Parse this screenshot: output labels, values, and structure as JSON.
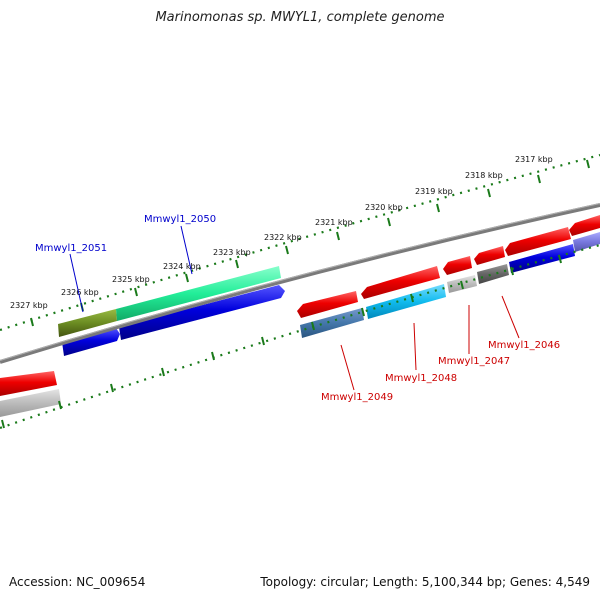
{
  "title": "Marinomonas sp. MWYL1, complete genome",
  "footer": {
    "accession": "Accession: NC_009654",
    "summary": "Topology: circular; Length: 5,100,344 bp; Genes: 4,549"
  },
  "scale_labels": [
    "2317 kbp",
    "2318 kbp",
    "2319 kbp",
    "2320 kbp",
    "2321 kbp",
    "2322 kbp",
    "2323 kbp",
    "2324 kbp",
    "2325 kbp",
    "2326 kbp",
    "2327 kbp"
  ],
  "gene_labels": [
    {
      "text": "Mmwyl1_2051",
      "color": "#0000cc"
    },
    {
      "text": "Mmwyl1_2050",
      "color": "#0000cc"
    },
    {
      "text": "Mmwyl1_2049",
      "color": "#cc0000"
    },
    {
      "text": "Mmwyl1_2048",
      "color": "#cc0000"
    },
    {
      "text": "Mmwyl1_2047",
      "color": "#cc0000"
    },
    {
      "text": "Mmwyl1_2046",
      "color": "#cc0000"
    }
  ],
  "colors": {
    "backbone": "#7a7a7a",
    "scale_ticks": "#1a7a1a",
    "forward_cds": "#0000dd",
    "reverse_cds": "#ee0000",
    "cog_green": "#22ee99",
    "cog_olive": "#6b8c22",
    "cog_cyan": "#11bbee",
    "cog_steel": "#4477aa",
    "cog_grey": "#bbbbbb",
    "cog_dark": "#666666",
    "cog_lavender": "#7777dd"
  }
}
